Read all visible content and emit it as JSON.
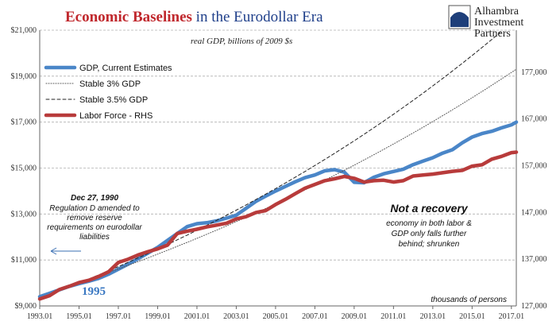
{
  "chart_data": {
    "type": "line",
    "title_accent": "Economic Baselines",
    "title_rest": " in the Eurodollar Era",
    "subtitle": "real GDP, billions of 2009 $s",
    "y_left_ticks": [
      "$9,000",
      "$11,000",
      "$13,000",
      "$15,000",
      "$17,000",
      "$19,000",
      "$21,000"
    ],
    "ylim_left": [
      9000,
      21000
    ],
    "y_right_ticks": [
      "127,000",
      "137,000",
      "147,000",
      "157,000",
      "167,000",
      "177,000"
    ],
    "ylim_right": [
      127000,
      186000
    ],
    "x_ticks": [
      "1993.01",
      "1995.01",
      "1997.01",
      "1999.01",
      "2001.01",
      "2003.01",
      "2005.01",
      "2007.01",
      "2009.01",
      "2011.01",
      "2013.01",
      "2015.01",
      "2017.01"
    ],
    "xlim": [
      1993.0,
      2017.25
    ],
    "right_axis_label": "thousands of persons",
    "legend_position": "top-left",
    "series": [
      {
        "name": "GDP, Current Estimates",
        "axis": "left",
        "color": "#4a86c8",
        "style": "solid-thick",
        "points": [
          [
            1993.0,
            9400
          ],
          [
            1993.5,
            9550
          ],
          [
            1994.0,
            9700
          ],
          [
            1994.5,
            9850
          ],
          [
            1995.0,
            9970
          ],
          [
            1995.5,
            10080
          ],
          [
            1996.0,
            10200
          ],
          [
            1996.5,
            10380
          ],
          [
            1997.0,
            10600
          ],
          [
            1997.5,
            10820
          ],
          [
            1998.0,
            11050
          ],
          [
            1998.5,
            11300
          ],
          [
            1999.0,
            11550
          ],
          [
            1999.5,
            11850
          ],
          [
            2000.0,
            12150
          ],
          [
            2000.5,
            12450
          ],
          [
            2001.0,
            12580
          ],
          [
            2001.5,
            12620
          ],
          [
            2002.0,
            12700
          ],
          [
            2002.5,
            12820
          ],
          [
            2003.0,
            12950
          ],
          [
            2003.5,
            13250
          ],
          [
            2004.0,
            13550
          ],
          [
            2004.5,
            13780
          ],
          [
            2005.0,
            14000
          ],
          [
            2005.5,
            14200
          ],
          [
            2006.0,
            14400
          ],
          [
            2006.5,
            14580
          ],
          [
            2007.0,
            14700
          ],
          [
            2007.5,
            14880
          ],
          [
            2008.0,
            14930
          ],
          [
            2008.5,
            14820
          ],
          [
            2009.0,
            14380
          ],
          [
            2009.5,
            14360
          ],
          [
            2010.0,
            14600
          ],
          [
            2010.5,
            14750
          ],
          [
            2011.0,
            14850
          ],
          [
            2011.5,
            14950
          ],
          [
            2012.0,
            15150
          ],
          [
            2012.5,
            15300
          ],
          [
            2013.0,
            15450
          ],
          [
            2013.5,
            15650
          ],
          [
            2014.0,
            15800
          ],
          [
            2014.5,
            16100
          ],
          [
            2015.0,
            16350
          ],
          [
            2015.5,
            16500
          ],
          [
            2016.0,
            16600
          ],
          [
            2016.5,
            16750
          ],
          [
            2017.0,
            16880
          ],
          [
            2017.25,
            17000
          ]
        ]
      },
      {
        "name": "Stable 3% GDP",
        "axis": "left",
        "color": "#555555",
        "style": "dotted",
        "start": [
          1995.0,
          10000
        ],
        "growth": 0.03
      },
      {
        "name": "Stable 3.5% GDP",
        "axis": "left",
        "color": "#222222",
        "style": "dashed",
        "start": [
          1995.0,
          10000
        ],
        "growth": 0.035
      },
      {
        "name": "Labor Force - RHS",
        "axis": "right",
        "color": "#b83b3b",
        "style": "solid-thick",
        "points": [
          [
            1993.0,
            128500
          ],
          [
            1993.5,
            129200
          ],
          [
            1994.0,
            130500
          ],
          [
            1994.5,
            131200
          ],
          [
            1995.0,
            132000
          ],
          [
            1995.5,
            132500
          ],
          [
            1996.0,
            133300
          ],
          [
            1996.5,
            134300
          ],
          [
            1997.0,
            136300
          ],
          [
            1997.5,
            137000
          ],
          [
            1998.0,
            137900
          ],
          [
            1998.5,
            138600
          ],
          [
            1999.0,
            139200
          ],
          [
            1999.5,
            140000
          ],
          [
            2000.0,
            142500
          ],
          [
            2000.5,
            143000
          ],
          [
            2001.0,
            143400
          ],
          [
            2001.5,
            143900
          ],
          [
            2002.0,
            144300
          ],
          [
            2002.5,
            144700
          ],
          [
            2003.0,
            145600
          ],
          [
            2003.5,
            146100
          ],
          [
            2004.0,
            147000
          ],
          [
            2004.5,
            147400
          ],
          [
            2005.0,
            148700
          ],
          [
            2005.5,
            149800
          ],
          [
            2006.0,
            151000
          ],
          [
            2006.5,
            152200
          ],
          [
            2007.0,
            153000
          ],
          [
            2007.5,
            153800
          ],
          [
            2008.0,
            154200
          ],
          [
            2008.5,
            154700
          ],
          [
            2009.0,
            154300
          ],
          [
            2009.5,
            153500
          ],
          [
            2010.0,
            153800
          ],
          [
            2010.5,
            153900
          ],
          [
            2011.0,
            153500
          ],
          [
            2011.5,
            153800
          ],
          [
            2012.0,
            154800
          ],
          [
            2012.5,
            155000
          ],
          [
            2013.0,
            155200
          ],
          [
            2013.5,
            155500
          ],
          [
            2014.0,
            155800
          ],
          [
            2014.5,
            156000
          ],
          [
            2015.0,
            156900
          ],
          [
            2015.5,
            157200
          ],
          [
            2016.0,
            158400
          ],
          [
            2016.5,
            159000
          ],
          [
            2017.0,
            159800
          ],
          [
            2017.25,
            159900
          ]
        ]
      }
    ],
    "annotations": {
      "dec_title": "Dec 27, 1990",
      "dec_lines": [
        "Regulation D amended to",
        "remove reserve",
        "requirements on eurodollar",
        "liabilities"
      ],
      "not_recovery": "Not a recovery",
      "shrunken_lines": [
        "economy in both labor &",
        "GDP only falls further",
        "behind; shrunken"
      ],
      "year_1995": "1995"
    }
  },
  "logo": {
    "text_lines": [
      "Alhambra",
      "Investment",
      "Partners"
    ]
  }
}
